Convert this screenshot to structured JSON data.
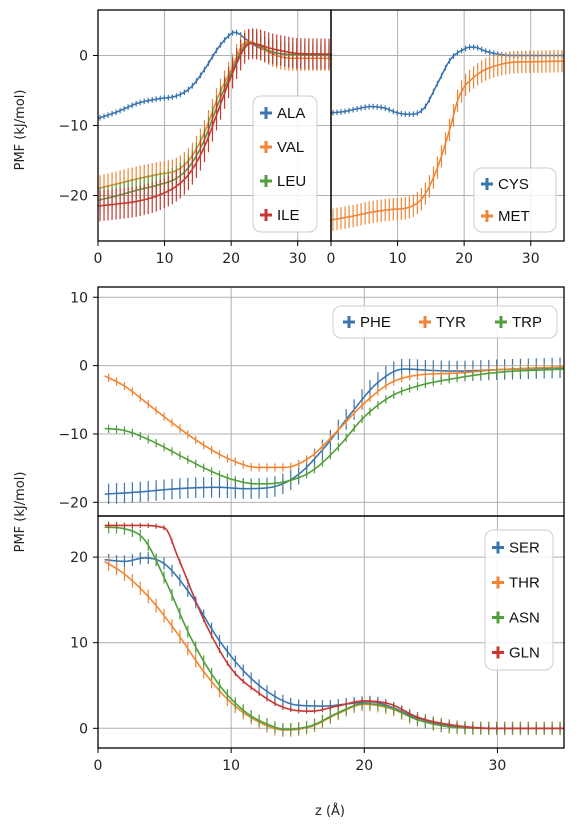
{
  "colors": {
    "blue": "#3b75af",
    "orange": "#ef8636",
    "green": "#519e3e",
    "red": "#c53932",
    "grid": "#b0b0b0"
  },
  "chart_data": [
    {
      "id": "panel-a",
      "type": "line",
      "xlim": [
        0,
        35
      ],
      "ylim": [
        -26.5,
        6.5
      ],
      "xticks": [
        "0",
        "10",
        "20",
        "30"
      ],
      "xtick_values": [
        0,
        10,
        20,
        30
      ],
      "yticks": [
        "−20",
        "−10",
        "0"
      ],
      "ytick_values": [
        -20,
        -10,
        0
      ],
      "ylabel": "PMF (kJ/mol)",
      "xlabel": "",
      "legend": "right",
      "series": [
        {
          "name": "ALA",
          "color": "blue",
          "err": 0.4,
          "x": [
            0,
            3,
            6,
            9,
            12,
            14,
            16,
            18,
            19.5,
            20.5,
            21,
            22,
            23,
            24,
            25,
            27,
            30,
            35
          ],
          "y": [
            -9,
            -8,
            -6.8,
            -6.2,
            -5.7,
            -4.5,
            -2,
            1,
            2.7,
            3.3,
            3.2,
            2.5,
            1.8,
            1.2,
            0.8,
            0.3,
            0.1,
            0
          ]
        },
        {
          "name": "VAL",
          "color": "orange",
          "err": 1.8,
          "x": [
            0,
            3,
            6,
            9,
            12,
            14,
            16,
            18,
            20,
            22,
            23,
            24,
            26,
            28,
            30,
            35
          ],
          "y": [
            -19,
            -18.3,
            -17.6,
            -17,
            -16.3,
            -14.5,
            -11,
            -6,
            -2,
            1.8,
            2,
            1.4,
            0.3,
            -0.3,
            -0.4,
            -0.4
          ]
        },
        {
          "name": "LEU",
          "color": "green",
          "err": 1.8,
          "x": [
            0,
            3,
            6,
            9,
            12,
            14,
            16,
            18,
            20,
            22,
            23,
            24,
            26,
            28,
            30,
            35
          ],
          "y": [
            -20.7,
            -20,
            -19.2,
            -18.5,
            -17.4,
            -15.5,
            -12,
            -7,
            -2.5,
            1.4,
            1.8,
            1.5,
            0.6,
            0.2,
            0.1,
            0.1
          ]
        },
        {
          "name": "ILE",
          "color": "red",
          "err": 2.2,
          "x": [
            0,
            3,
            6,
            9,
            12,
            14,
            16,
            18,
            20,
            22,
            23,
            24,
            26,
            28,
            30,
            35
          ],
          "y": [
            -21.5,
            -21.2,
            -20.8,
            -20,
            -18.5,
            -16.5,
            -13,
            -8,
            -3,
            1,
            1.7,
            1.6,
            1,
            0.6,
            0.3,
            0.2
          ]
        }
      ]
    },
    {
      "id": "panel-b",
      "type": "line",
      "xlim": [
        0,
        35
      ],
      "ylim": [
        -26.5,
        6.5
      ],
      "xticks": [
        "0",
        "10",
        "20",
        "30"
      ],
      "xtick_values": [
        0,
        10,
        20,
        30
      ],
      "yticks": [],
      "ytick_values": [],
      "ylabel": "",
      "xlabel": "",
      "legend": "bottom-right",
      "series": [
        {
          "name": "CYS",
          "color": "blue",
          "err": 0.4,
          "x": [
            0,
            2,
            4,
            6,
            8,
            10,
            12,
            14,
            16,
            18,
            20,
            21,
            22,
            23,
            25,
            27,
            30,
            35
          ],
          "y": [
            -8.2,
            -8,
            -7.6,
            -7.3,
            -7.5,
            -8.2,
            -8.4,
            -7.5,
            -4,
            -0.5,
            0.9,
            1.2,
            1.1,
            0.7,
            0.2,
            0,
            0,
            0
          ]
        },
        {
          "name": "MET",
          "color": "orange",
          "err": 1.6,
          "x": [
            0,
            3,
            6,
            9,
            12,
            14,
            16,
            18,
            19,
            20,
            21,
            22,
            23,
            25,
            27,
            30,
            35
          ],
          "y": [
            -23.5,
            -23,
            -22.4,
            -22,
            -21.6,
            -20,
            -16,
            -10,
            -6.5,
            -4.5,
            -3.5,
            -2.7,
            -2.1,
            -1.4,
            -1,
            -0.9,
            -0.8
          ]
        }
      ]
    },
    {
      "id": "panel-c",
      "type": "line",
      "xlim": [
        0,
        35
      ],
      "ylim": [
        -22,
        11.5
      ],
      "xticks": [],
      "xtick_values": [
        0,
        10,
        20,
        30
      ],
      "yticks": [
        "−20",
        "−10",
        "0",
        "10"
      ],
      "ytick_values": [
        -20,
        -10,
        0,
        10
      ],
      "ylabel": "PMF (kJ/mol)",
      "xlabel": "",
      "legend": "top-right",
      "series": [
        {
          "name": "PHE",
          "color": "blue",
          "err": 1.5,
          "x": [
            0.5,
            3,
            6,
            9,
            11,
            13,
            15,
            17,
            19,
            21,
            23,
            25,
            27,
            30,
            35
          ],
          "y": [
            -18.8,
            -18.5,
            -18,
            -17.8,
            -18,
            -17.8,
            -16,
            -12,
            -7,
            -2.5,
            -0.5,
            -0.7,
            -0.8,
            -0.6,
            -0.3
          ]
        },
        {
          "name": "TYR",
          "color": "orange",
          "err": 0.6,
          "x": [
            0.5,
            2,
            4,
            6,
            8,
            10,
            12,
            14,
            16,
            18,
            20,
            22,
            24,
            27,
            30,
            35
          ],
          "y": [
            -1.5,
            -3,
            -6,
            -9,
            -11.7,
            -13.8,
            -14.9,
            -14.9,
            -13.3,
            -9.5,
            -5.5,
            -2.5,
            -1.4,
            -1.1,
            -0.6,
            -0.2
          ]
        },
        {
          "name": "TRP",
          "color": "green",
          "err": 0.6,
          "x": [
            0.5,
            2,
            4,
            6,
            8,
            10,
            12,
            14,
            16,
            18,
            20,
            22,
            24,
            27,
            30,
            35
          ],
          "y": [
            -9.2,
            -9.5,
            -11,
            -13,
            -15,
            -16.6,
            -17.3,
            -17,
            -15.5,
            -12,
            -7.5,
            -4.5,
            -3,
            -1.8,
            -1,
            -0.5
          ]
        }
      ]
    },
    {
      "id": "panel-d",
      "type": "line",
      "xlim": [
        0,
        35
      ],
      "ylim": [
        -2.3,
        24.8
      ],
      "xticks": [
        "0",
        "10",
        "20",
        "30"
      ],
      "xtick_values": [
        0,
        10,
        20,
        30
      ],
      "yticks": [
        "0",
        "10",
        "20"
      ],
      "ytick_values": [
        0,
        10,
        20
      ],
      "ylabel": "",
      "xlabel": "z (Å)",
      "legend": "top-right",
      "series": [
        {
          "name": "SER",
          "color": "blue",
          "err": 0.7,
          "x": [
            0.5,
            2,
            3.5,
            5,
            7,
            9,
            11,
            13,
            15,
            17,
            19,
            20.5,
            22,
            24,
            27,
            30,
            35
          ],
          "y": [
            19.7,
            19.5,
            19.9,
            19.2,
            15.5,
            10.5,
            6.6,
            4,
            2.7,
            2.6,
            2.9,
            3.1,
            2.5,
            1.2,
            0.2,
            0,
            0
          ]
        },
        {
          "name": "THR",
          "color": "orange",
          "err": 0.8,
          "x": [
            0.5,
            2,
            4,
            6,
            8,
            10,
            12,
            14,
            16,
            18,
            20,
            22,
            24,
            27,
            30,
            35
          ],
          "y": [
            19.5,
            18,
            15,
            11,
            6.5,
            3,
            0.8,
            -0.2,
            0.2,
            1.7,
            2.8,
            2.3,
            1,
            0.1,
            0,
            0
          ]
        },
        {
          "name": "ASN",
          "color": "green",
          "err": 0.7,
          "x": [
            0.5,
            2,
            3.5,
            5,
            7,
            9,
            11,
            13,
            14,
            16,
            18,
            20,
            22,
            24,
            27,
            30,
            35
          ],
          "y": [
            23.5,
            23.3,
            22,
            17.5,
            10.5,
            5.3,
            2,
            0.3,
            -0.1,
            0.3,
            1.8,
            2.9,
            2.4,
            1,
            0.1,
            0,
            0
          ]
        },
        {
          "name": "GLN",
          "color": "red",
          "err": 0.3,
          "x": [
            0.5,
            3,
            5,
            6,
            8,
            10,
            12,
            14,
            16,
            18,
            20,
            22,
            24,
            27,
            30,
            35
          ],
          "y": [
            23.7,
            23.7,
            23.4,
            20,
            12.5,
            7,
            4.2,
            2.4,
            2,
            2.6,
            3.2,
            2.8,
            1.3,
            0.3,
            0,
            0
          ]
        }
      ]
    }
  ]
}
